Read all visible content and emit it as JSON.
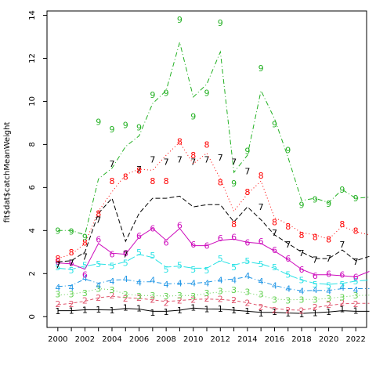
{
  "chart_data": {
    "type": "line",
    "ylabel": "fit$dat$catchMeanWeight",
    "xlabel": "",
    "xlim": [
      1999.2,
      2022.8
    ],
    "ylim": [
      -0.5,
      14.2
    ],
    "x_ticks": [
      2000,
      2002,
      2004,
      2006,
      2008,
      2010,
      2012,
      2014,
      2016,
      2018,
      2020,
      2022
    ],
    "y_ticks": [
      0,
      2,
      4,
      6,
      8,
      10,
      12,
      14
    ],
    "grid": false,
    "legend": "none",
    "x": [
      2000,
      2001,
      2002,
      2003,
      2004,
      2005,
      2006,
      2007,
      2008,
      2009,
      2010,
      2011,
      2012,
      2013,
      2014,
      2015,
      2016,
      2017,
      2018,
      2019,
      2020,
      2021,
      2022
    ],
    "fit_x": [
      2000,
      2001,
      2002,
      2003,
      2004,
      2005,
      2006,
      2007,
      2008,
      2009,
      2010,
      2011,
      2012,
      2013,
      2014,
      2015,
      2016,
      2017,
      2018,
      2019,
      2020,
      2021,
      2022,
      2023
    ],
    "series": [
      {
        "name": "1",
        "color": "#000000",
        "dash": "",
        "points": [
          0.27,
          0.28,
          0.32,
          0.33,
          0.3,
          0.42,
          0.4,
          0.2,
          0.22,
          0.3,
          0.42,
          0.35,
          0.38,
          0.3,
          0.27,
          0.15,
          0.22,
          0.15,
          0.12,
          0.18,
          0.22,
          0.35,
          0.28
        ],
        "fit": [
          0.28,
          0.28,
          0.32,
          0.32,
          0.31,
          0.38,
          0.35,
          0.25,
          0.25,
          0.3,
          0.4,
          0.36,
          0.35,
          0.3,
          0.25,
          0.2,
          0.2,
          0.17,
          0.15,
          0.18,
          0.22,
          0.28,
          0.25,
          0.25
        ]
      },
      {
        "name": "2",
        "color": "#df536b",
        "dash": "4,3",
        "points": [
          0.6,
          0.6,
          0.75,
          0.88,
          1.0,
          0.85,
          0.88,
          0.8,
          0.65,
          0.75,
          0.8,
          0.85,
          0.82,
          0.78,
          0.65,
          0.45,
          0.3,
          0.3,
          0.28,
          0.45,
          0.55,
          0.65,
          0.6
        ],
        "fit": [
          0.55,
          0.62,
          0.72,
          0.88,
          0.95,
          0.88,
          0.85,
          0.78,
          0.7,
          0.75,
          0.8,
          0.82,
          0.8,
          0.75,
          0.65,
          0.5,
          0.38,
          0.32,
          0.3,
          0.42,
          0.52,
          0.6,
          0.62,
          0.62
        ]
      },
      {
        "name": "3",
        "color": "#61d04f",
        "dash": "1,3",
        "points": [
          1.05,
          1.05,
          1.1,
          1.3,
          1.25,
          1.02,
          0.95,
          1.0,
          0.95,
          1.0,
          0.95,
          1.1,
          1.2,
          1.25,
          1.15,
          1.05,
          0.8,
          0.75,
          0.8,
          0.8,
          0.85,
          0.9,
          1.0
        ],
        "fit": [
          1.0,
          1.05,
          1.15,
          1.3,
          1.25,
          1.05,
          0.98,
          0.98,
          0.95,
          0.98,
          0.98,
          1.08,
          1.15,
          1.18,
          1.1,
          0.98,
          0.82,
          0.78,
          0.8,
          0.8,
          0.85,
          0.92,
          0.98,
          1.0
        ]
      },
      {
        "name": "4",
        "color": "#2297e6",
        "dash": "6,3,1,3",
        "points": [
          1.35,
          1.35,
          1.8,
          1.45,
          1.65,
          1.75,
          1.6,
          1.7,
          1.5,
          1.55,
          1.55,
          1.55,
          1.7,
          1.7,
          1.9,
          1.65,
          1.45,
          1.3,
          1.2,
          1.25,
          1.2,
          1.35,
          1.25
        ],
        "fit": [
          1.4,
          1.45,
          1.75,
          1.55,
          1.7,
          1.72,
          1.62,
          1.62,
          1.52,
          1.55,
          1.55,
          1.6,
          1.7,
          1.75,
          1.85,
          1.65,
          1.45,
          1.3,
          1.2,
          1.22,
          1.22,
          1.3,
          1.3,
          1.3
        ]
      },
      {
        "name": "5",
        "color": "#28e2e5",
        "dash": "10,3",
        "points": [
          2.3,
          2.15,
          2.4,
          2.45,
          2.35,
          2.5,
          3.0,
          2.85,
          2.2,
          2.4,
          2.2,
          2.15,
          2.7,
          2.3,
          2.6,
          2.45,
          2.3,
          1.95,
          1.7,
          1.5,
          1.45,
          1.5,
          1.65
        ],
        "fit": [
          2.25,
          2.2,
          2.35,
          2.45,
          2.4,
          2.55,
          2.9,
          2.75,
          2.3,
          2.35,
          2.25,
          2.25,
          2.6,
          2.4,
          2.55,
          2.45,
          2.25,
          1.95,
          1.7,
          1.55,
          1.5,
          1.55,
          1.65,
          1.7
        ]
      },
      {
        "name": "6",
        "color": "#cd0bbc",
        "dash": "",
        "points": [
          2.55,
          2.5,
          1.95,
          3.6,
          2.9,
          2.95,
          3.75,
          4.1,
          3.45,
          4.25,
          3.35,
          3.3,
          3.65,
          3.7,
          3.45,
          3.5,
          3.1,
          2.7,
          2.2,
          1.9,
          2.0,
          1.95,
          1.85
        ],
        "fit": [
          2.5,
          2.45,
          2.2,
          3.4,
          2.95,
          2.9,
          3.7,
          4.1,
          3.55,
          4.1,
          3.3,
          3.3,
          3.55,
          3.6,
          3.45,
          3.4,
          3.05,
          2.65,
          2.2,
          1.95,
          1.95,
          1.9,
          1.85,
          2.1
        ]
      },
      {
        "name": "7",
        "color": "#000000",
        "dash": "6,3",
        "points": [
          2.4,
          2.5,
          2.8,
          4.5,
          7.1,
          2.9,
          6.85,
          7.3,
          7.2,
          7.3,
          7.2,
          7.3,
          7.4,
          7.2,
          6.75,
          5.1,
          3.9,
          3.35,
          2.95,
          2.65,
          2.7,
          3.35,
          2.55
        ],
        "fit": [
          2.55,
          2.6,
          3.0,
          4.8,
          5.5,
          3.5,
          4.8,
          5.5,
          5.5,
          5.6,
          5.1,
          5.2,
          5.2,
          4.4,
          5.1,
          4.5,
          3.8,
          3.4,
          3.0,
          2.7,
          2.7,
          3.1,
          2.6,
          2.8
        ]
      },
      {
        "name": "8",
        "color": "#ff0000",
        "dash": "1,3",
        "points": [
          2.7,
          3.0,
          3.45,
          4.8,
          6.3,
          6.5,
          6.8,
          6.3,
          6.3,
          8.15,
          7.5,
          8.0,
          6.25,
          4.3,
          5.8,
          6.55,
          4.4,
          4.2,
          3.8,
          3.7,
          3.6,
          4.3,
          4.0
        ],
        "fit": [
          2.7,
          2.9,
          3.4,
          4.9,
          5.8,
          6.6,
          6.85,
          6.8,
          7.5,
          8.1,
          7.1,
          7.6,
          6.4,
          4.9,
          5.7,
          6.3,
          4.6,
          4.3,
          3.9,
          3.8,
          3.6,
          4.2,
          3.95,
          3.8
        ]
      },
      {
        "name": "9",
        "color": "#22b022",
        "dash": "6,3,1,3",
        "points": [
          4.0,
          3.95,
          3.7,
          9.05,
          8.7,
          8.9,
          8.8,
          10.3,
          10.4,
          13.8,
          9.3,
          10.4,
          13.65,
          6.2,
          7.7,
          11.55,
          8.95,
          7.75,
          5.2,
          5.45,
          5.25,
          5.9,
          5.5
        ],
        "fit": [
          4.0,
          4.0,
          3.8,
          6.4,
          6.9,
          7.9,
          8.4,
          9.9,
          10.5,
          12.75,
          10.2,
          10.8,
          12.3,
          6.7,
          7.5,
          10.5,
          9.2,
          7.4,
          5.4,
          5.5,
          5.3,
          5.9,
          5.5,
          5.55
        ]
      }
    ]
  }
}
